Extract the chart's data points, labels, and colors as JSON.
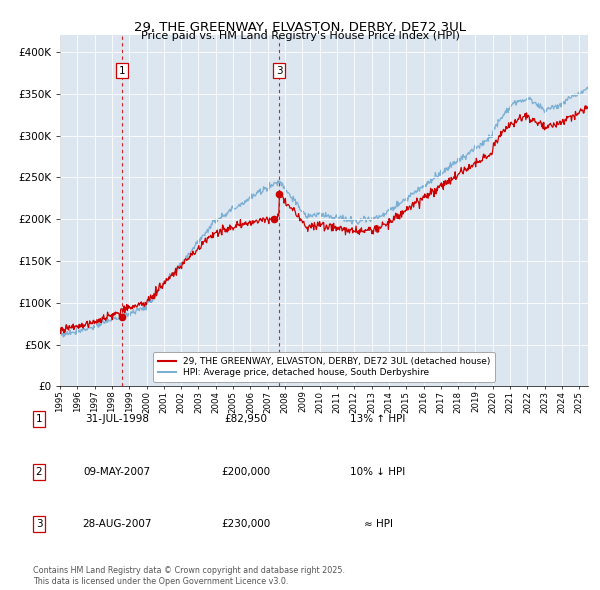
{
  "title": "29, THE GREENWAY, ELVASTON, DERBY, DE72 3UL",
  "subtitle": "Price paid vs. HM Land Registry's House Price Index (HPI)",
  "background_color": "#dce6f0",
  "plot_bg_color": "#dce6f0",
  "hpi_line_color": "#7bafd4",
  "price_line_color": "#cc0000",
  "marker_color": "#cc0000",
  "vline_color": "#cc0000",
  "ylim": [
    0,
    420000
  ],
  "yticks": [
    0,
    50000,
    100000,
    150000,
    200000,
    250000,
    300000,
    350000,
    400000
  ],
  "legend_price_label": "29, THE GREENWAY, ELVASTON, DERBY, DE72 3UL (detached house)",
  "legend_hpi_label": "HPI: Average price, detached house, South Derbyshire",
  "transactions": [
    {
      "id": 1,
      "date_x": 1998.58,
      "price": 82950
    },
    {
      "id": 2,
      "date_x": 2007.36,
      "price": 200000
    },
    {
      "id": 3,
      "date_x": 2007.66,
      "price": 230000
    }
  ],
  "vlines": [
    1998.58,
    2007.66
  ],
  "vline_labels": [
    "1",
    "3"
  ],
  "table_rows": [
    {
      "num": "1",
      "date": "31-JUL-1998",
      "price": "£82,950",
      "hpi": "13% ↑ HPI"
    },
    {
      "num": "2",
      "date": "09-MAY-2007",
      "price": "£200,000",
      "hpi": "10% ↓ HPI"
    },
    {
      "num": "3",
      "date": "28-AUG-2007",
      "price": "£230,000",
      "hpi": "≈ HPI"
    }
  ],
  "footer": "Contains HM Land Registry data © Crown copyright and database right 2025.\nThis data is licensed under the Open Government Licence v3.0.",
  "xmin": 1995.0,
  "xmax": 2025.5
}
